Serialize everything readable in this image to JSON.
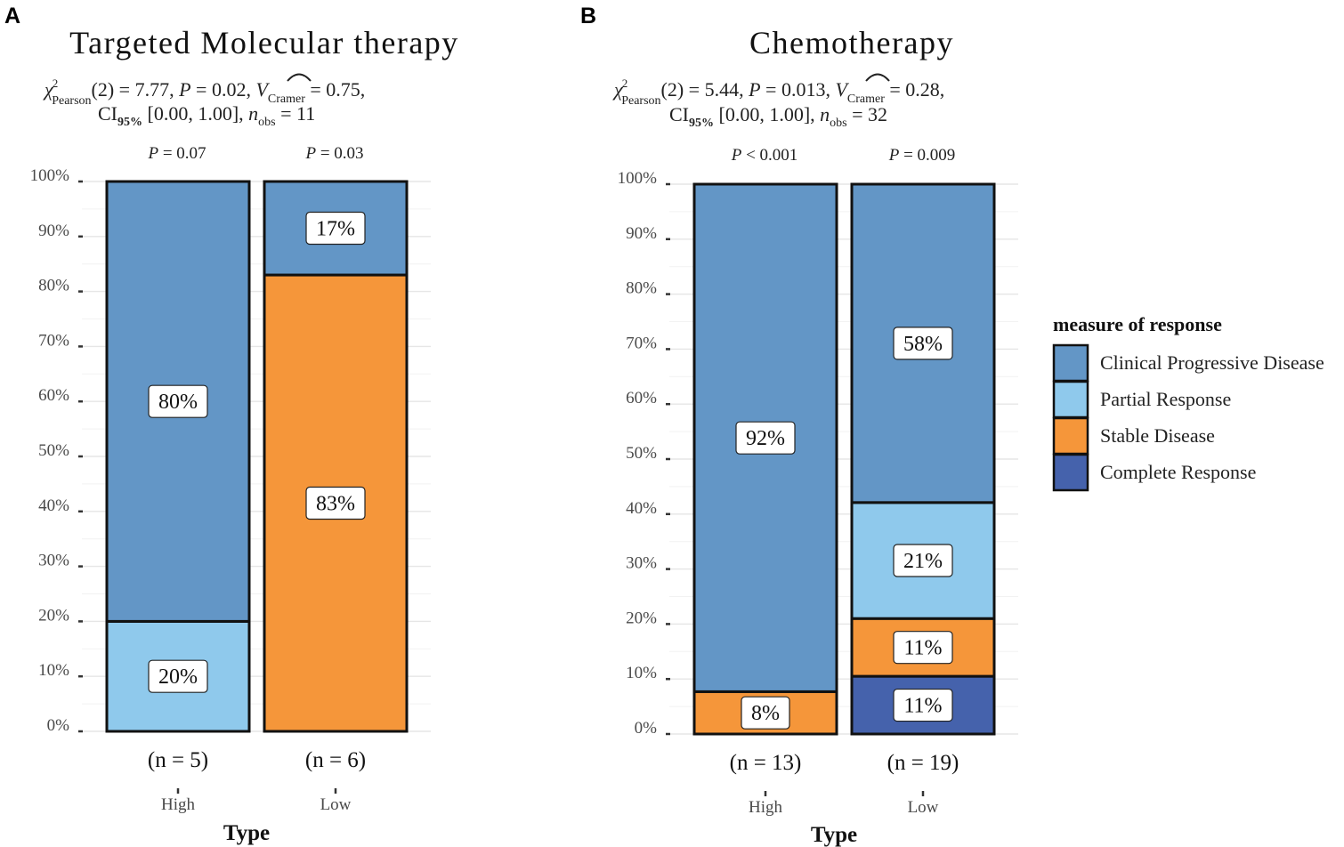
{
  "colors": {
    "Clinical Progressive Disease": "#6396c6",
    "Partial Response": "#8fc9ec",
    "Stable Disease": "#f5963a",
    "Complete Response": "#4562ac",
    "grid": "#ebebeb",
    "text": "#4a4a4a",
    "border": "#111111"
  },
  "legend": {
    "title": "measure of response",
    "items": [
      "Clinical Progressive Disease",
      "Partial Response",
      "Stable Disease",
      "Complete Response"
    ]
  },
  "chart_data": [
    {
      "type": "bar",
      "stacked": "percent",
      "panel_letter": "A",
      "title": "Targeted Molecular therapy",
      "subtitle": {
        "chi_sub": "Pearson",
        "chi_rest": "(2) = 7.77, ",
        "p_value": "0.02",
        "v_value": "0.75",
        "ci": "[0.00, 1.00]",
        "n_obs": "11"
      },
      "xlabel": "Type",
      "ylabel": "",
      "ylim": [
        0,
        100
      ],
      "yticks": [
        "0%",
        "10%",
        "20%",
        "30%",
        "40%",
        "50%",
        "60%",
        "70%",
        "80%",
        "90%",
        "100%"
      ],
      "categories": [
        "High",
        "Low"
      ],
      "n_labels": [
        "(n = 5)",
        "(n = 6)"
      ],
      "top_p": [
        {
          "rel": "=",
          "value": "0.07"
        },
        {
          "rel": "=",
          "value": "0.03"
        }
      ],
      "series": [
        {
          "name": "Partial Response",
          "values": [
            20,
            0
          ],
          "labels": [
            "20%",
            ""
          ]
        },
        {
          "name": "Stable Disease",
          "values": [
            0,
            83
          ],
          "labels": [
            "",
            "83%"
          ]
        },
        {
          "name": "Clinical Progressive Disease",
          "values": [
            80,
            17
          ],
          "labels": [
            "80%",
            "17%"
          ]
        }
      ]
    },
    {
      "type": "bar",
      "stacked": "percent",
      "panel_letter": "B",
      "title": "Chemotherapy",
      "subtitle": {
        "chi_sub": "Pearson",
        "chi_rest": "(2) = 5.44, ",
        "p_value": "0.013",
        "v_value": "0.28",
        "ci": "[0.00, 1.00]",
        "n_obs": "32"
      },
      "xlabel": "Type",
      "ylabel": "",
      "ylim": [
        0,
        100
      ],
      "yticks": [
        "0%",
        "10%",
        "20%",
        "30%",
        "40%",
        "50%",
        "60%",
        "70%",
        "80%",
        "90%",
        "100%"
      ],
      "categories": [
        "High",
        "Low"
      ],
      "n_labels": [
        "(n = 13)",
        "(n = 19)"
      ],
      "top_p": [
        {
          "rel": "<",
          "value": "0.001"
        },
        {
          "rel": "=",
          "value": "0.009"
        }
      ],
      "series": [
        {
          "name": "Complete Response",
          "values": [
            0,
            10.5
          ],
          "labels": [
            "",
            "11%"
          ]
        },
        {
          "name": "Stable Disease",
          "values": [
            7.7,
            10.5
          ],
          "labels": [
            "8%",
            "11%"
          ]
        },
        {
          "name": "Partial Response",
          "values": [
            0,
            21.1
          ],
          "labels": [
            "",
            "21%"
          ]
        },
        {
          "name": "Clinical Progressive Disease",
          "values": [
            92.3,
            57.9
          ],
          "labels": [
            "92%",
            "58%"
          ]
        }
      ]
    }
  ]
}
